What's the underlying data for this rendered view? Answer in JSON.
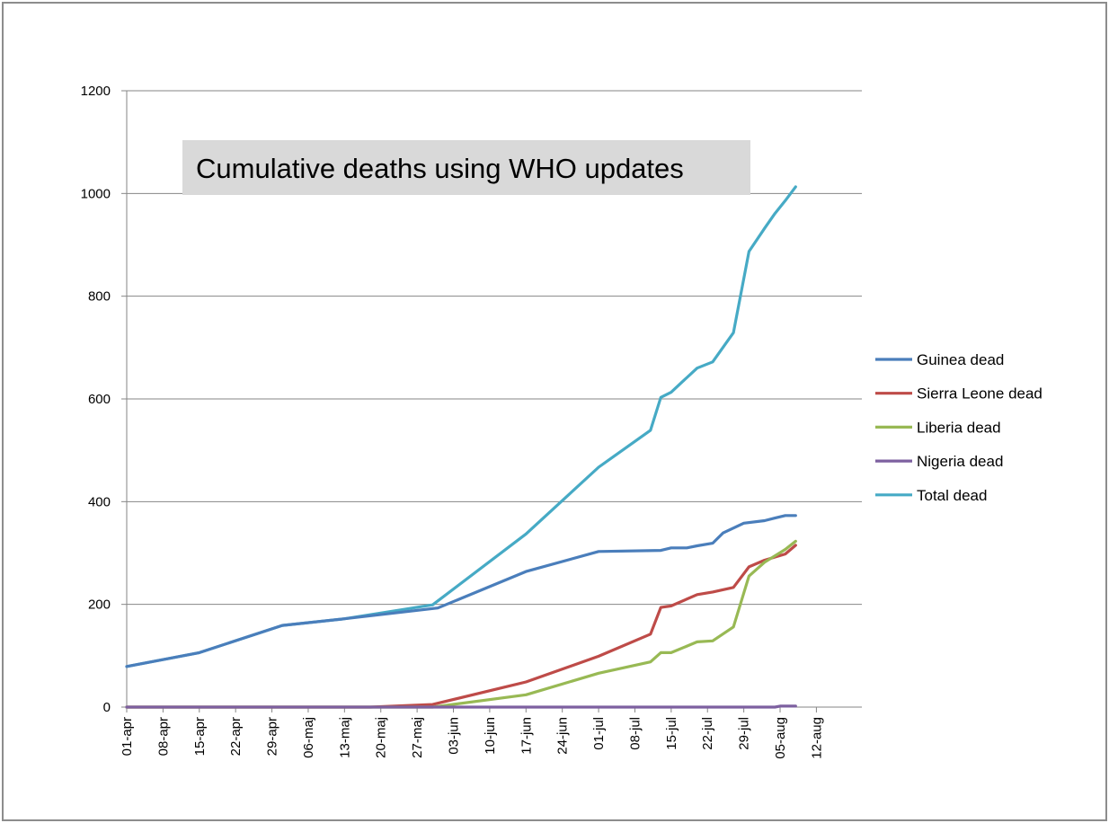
{
  "chart_data": {
    "type": "line",
    "title": "Cumulative deaths using WHO updates",
    "xlabel": "",
    "ylabel": "",
    "ylim": [
      0,
      1200
    ],
    "yticks": [
      0,
      200,
      400,
      600,
      800,
      1000,
      1200
    ],
    "grid": true,
    "legend_position": "right",
    "x_start": "2014-04-01",
    "x_end": "2014-08-15",
    "x_ticks": [
      {
        "day": 0,
        "label": "01-apr"
      },
      {
        "day": 7,
        "label": "08-apr"
      },
      {
        "day": 14,
        "label": "15-apr"
      },
      {
        "day": 21,
        "label": "22-apr"
      },
      {
        "day": 28,
        "label": "29-apr"
      },
      {
        "day": 35,
        "label": "06-maj"
      },
      {
        "day": 42,
        "label": "13-maj"
      },
      {
        "day": 49,
        "label": "20-maj"
      },
      {
        "day": 56,
        "label": "27-maj"
      },
      {
        "day": 63,
        "label": "03-jun"
      },
      {
        "day": 70,
        "label": "10-jun"
      },
      {
        "day": 77,
        "label": "17-jun"
      },
      {
        "day": 84,
        "label": "24-jun"
      },
      {
        "day": 91,
        "label": "01-jul"
      },
      {
        "day": 98,
        "label": "08-jul"
      },
      {
        "day": 105,
        "label": "15-jul"
      },
      {
        "day": 112,
        "label": "22-jul"
      },
      {
        "day": 119,
        "label": "29-jul"
      },
      {
        "day": 126,
        "label": "05-aug"
      },
      {
        "day": 133,
        "label": "12-aug"
      }
    ],
    "series": [
      {
        "name": "Guinea dead",
        "color": "#4a7ebb",
        "x": [
          0,
          14,
          30,
          42,
          60,
          77,
          91,
          103,
          105,
          108,
          110,
          113,
          115,
          119,
          123,
          125,
          127,
          129
        ],
        "y": [
          79,
          106,
          159,
          172,
          193,
          264,
          303,
          305,
          310,
          310,
          314,
          319,
          339,
          358,
          363,
          368,
          373,
          373
        ]
      },
      {
        "name": "Sierra Leone dead",
        "color": "#be4b48",
        "x": [
          0,
          47,
          59,
          77,
          91,
          101,
          103,
          105,
          110,
          113,
          117,
          120,
          123,
          127,
          129
        ],
        "y": [
          0,
          0,
          5,
          49,
          99,
          142,
          194,
          197,
          219,
          224,
          233,
          273,
          286,
          298,
          315
        ]
      },
      {
        "name": "Liberia dead",
        "color": "#98b954",
        "x": [
          0,
          59,
          77,
          91,
          101,
          103,
          105,
          110,
          113,
          117,
          120,
          123,
          127,
          129
        ],
        "y": [
          0,
          0,
          24,
          66,
          88,
          106,
          106,
          127,
          129,
          156,
          255,
          282,
          307,
          323
        ]
      },
      {
        "name": "Nigeria dead",
        "color": "#7d60a0",
        "x": [
          0,
          125,
          126,
          129
        ],
        "y": [
          0,
          0,
          2,
          2
        ]
      },
      {
        "name": "Total dead",
        "color": "#46aac5",
        "x": [
          0,
          14,
          30,
          42,
          59,
          77,
          91,
          101,
          103,
          105,
          107,
          110,
          113,
          117,
          120,
          123,
          125,
          127,
          129
        ],
        "y": [
          79,
          106,
          159,
          172,
          199,
          337,
          467,
          539,
          603,
          613,
          632,
          660,
          672,
          729,
          887,
          932,
          961,
          986,
          1013
        ]
      }
    ]
  }
}
